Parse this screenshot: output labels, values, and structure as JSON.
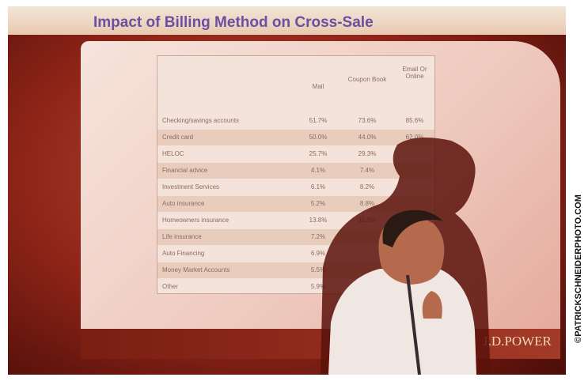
{
  "slide": {
    "title": "Impact of Billing Method on Cross-Sale",
    "columns": [
      "Mail",
      "Coupon Book",
      "Email Or Online"
    ],
    "rows": [
      {
        "label": "Checking/savings accounts",
        "values": [
          "51.7%",
          "73.6%",
          "85.6%"
        ]
      },
      {
        "label": "Credit card",
        "values": [
          "50.0%",
          "44.0%",
          "62.0%"
        ]
      },
      {
        "label": "HELOC",
        "values": [
          "25.7%",
          "29.3%",
          null
        ]
      },
      {
        "label": "Financial advice",
        "values": [
          "4.1%",
          "7.4%",
          null
        ]
      },
      {
        "label": "Investment Services",
        "values": [
          "6.1%",
          "8.2%",
          null
        ]
      },
      {
        "label": "Auto insurance",
        "values": [
          "5.2%",
          "8.8%",
          null
        ]
      },
      {
        "label": "Homeowners insurance",
        "values": [
          "13.8%",
          "11.5%",
          null
        ]
      },
      {
        "label": "Life insurance",
        "values": [
          "7.2%",
          null,
          null
        ]
      },
      {
        "label": "Auto Financing",
        "values": [
          "6.9%",
          null,
          null
        ]
      },
      {
        "label": "Money Market Accounts",
        "values": [
          "5.5%",
          null,
          null
        ]
      },
      {
        "label": "Other",
        "values": [
          "5.9%",
          null,
          null
        ]
      }
    ],
    "logo": "J.D.POWER"
  },
  "credit": "©PATRICKSCHNEIDERPHOTO.COM"
}
